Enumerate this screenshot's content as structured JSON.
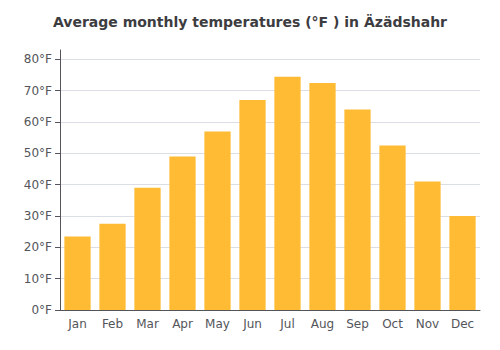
{
  "chart_data": {
    "type": "bar",
    "title": "Average monthly temperatures (°F ) in Äzädshahr",
    "categories": [
      "Jan",
      "Feb",
      "Mar",
      "Apr",
      "May",
      "Jun",
      "Jul",
      "Aug",
      "Sep",
      "Oct",
      "Nov",
      "Dec"
    ],
    "values": [
      23.5,
      27.5,
      39.0,
      49.0,
      57.0,
      67.0,
      74.5,
      72.5,
      64.0,
      52.5,
      41.0,
      30.0
    ],
    "color": "#FFBB33",
    "ylim": [
      0,
      83
    ],
    "yticks": [
      {
        "value": 0,
        "label": "0°F"
      },
      {
        "value": 10,
        "label": "10°F"
      },
      {
        "value": 20,
        "label": "20°F"
      },
      {
        "value": 30,
        "label": "30°F"
      },
      {
        "value": 40,
        "label": "40°F"
      },
      {
        "value": 50,
        "label": "50°F"
      },
      {
        "value": 60,
        "label": "60°F"
      },
      {
        "value": 70,
        "label": "70°F"
      },
      {
        "value": 80,
        "label": "80°F"
      }
    ],
    "grid": true
  }
}
